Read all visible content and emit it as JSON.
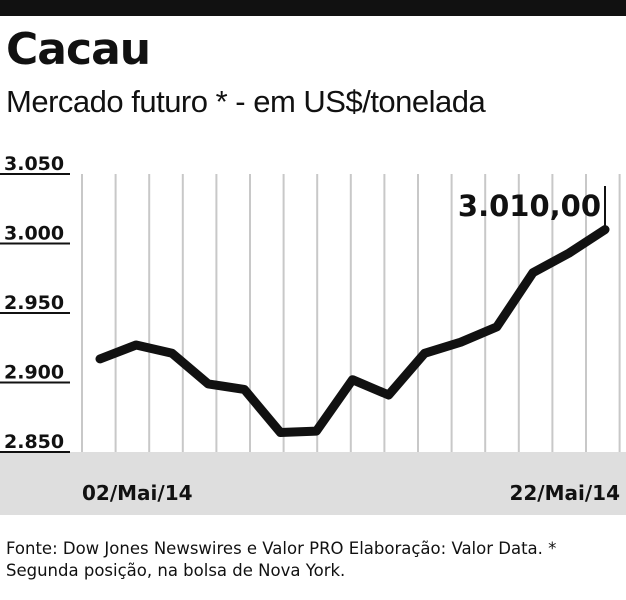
{
  "title": "Cacau",
  "subtitle": "Mercado futuro * - em US$/tonelada",
  "source_note": "Fonte: Dow Jones Newswires e Valor PRO Elaboração: Valor Data. * Segunda posição, na bolsa de Nova York.",
  "colors": {
    "line": "#111111",
    "grid": "#c8c8c8",
    "axis_band": "#dedede",
    "top_rule": "#111111"
  },
  "chart_data": {
    "type": "line",
    "x": [
      "02/Mai/14",
      "05/Mai/14",
      "06/Mai/14",
      "07/Mai/14",
      "08/Mai/14",
      "09/Mai/14",
      "12/Mai/14",
      "13/Mai/14",
      "14/Mai/14",
      "15/Mai/14",
      "16/Mai/14",
      "19/Mai/14",
      "20/Mai/14",
      "21/Mai/14",
      "22/Mai/14"
    ],
    "x_tick_labels": [
      "02/Mai/14",
      "22/Mai/14"
    ],
    "values": [
      2917,
      2927,
      2921,
      2899,
      2895,
      2864,
      2865,
      2902,
      2891,
      2921,
      2929,
      2940,
      2979,
      2993,
      3010
    ],
    "ylim": [
      2850,
      3050
    ],
    "yticks": [
      "3.050",
      "3.000",
      "2.950",
      "2.900",
      "2.850"
    ],
    "ytick_values": [
      3050,
      3000,
      2950,
      2900,
      2850
    ],
    "last_value_label": "3.010,00",
    "grid": "vertical",
    "title": "Cacau",
    "subtitle": "Mercado futuro * - em US$/tonelada",
    "xlabel": "",
    "ylabel": ""
  }
}
